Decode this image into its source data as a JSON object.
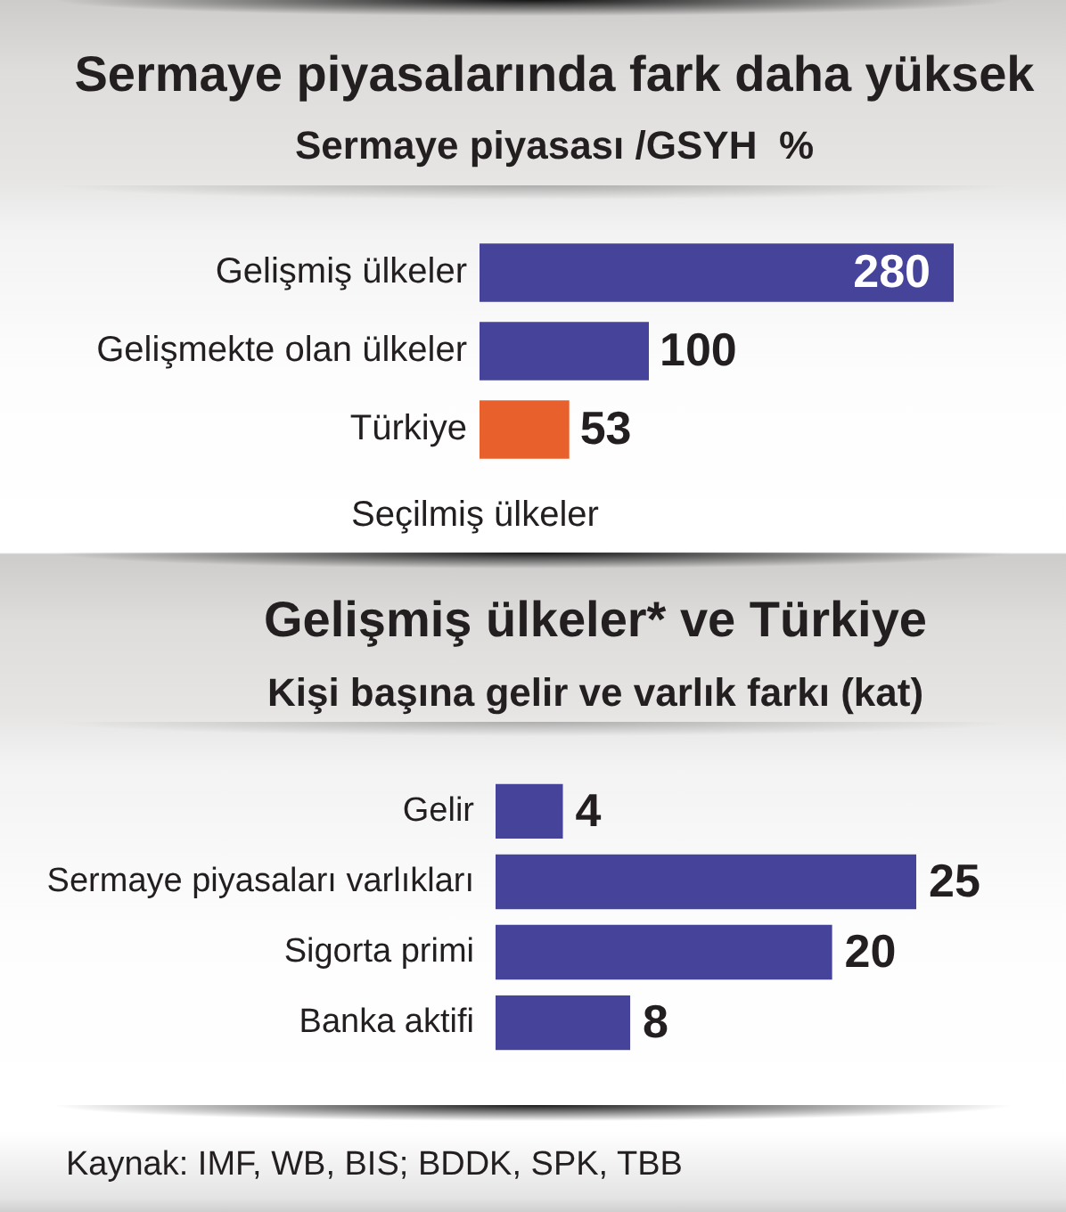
{
  "chart_data": [
    {
      "type": "bar",
      "orientation": "horizontal",
      "title": "Sermaye piyasalarında fark daha yüksek",
      "subtitle": "Sermaye piyasası /GSYH  %",
      "categories": [
        "Gelişmiş ülkeler",
        "Gelişmekte olan ülkeler",
        "Türkiye"
      ],
      "values": [
        280,
        100,
        53
      ],
      "colors": [
        "#45449a",
        "#45449a",
        "#e8612c"
      ],
      "data_labels": true,
      "annotations": [
        "Seçilmiş ülkeler"
      ]
    },
    {
      "type": "bar",
      "orientation": "horizontal",
      "title": "Gelişmiş ülkeler* ve Türkiye",
      "subtitle": "Kişi başına gelir ve varlık farkı (kat)",
      "categories": [
        "Gelir",
        "Sermaye piyasaları varlıkları",
        "Sigorta primi",
        "Banka aktifi"
      ],
      "values": [
        4,
        25,
        20,
        8
      ],
      "color": "#45449a",
      "data_labels": true,
      "annotations": [
        "Kaynak: IMF, WB, BIS; BDDK, SPK, TBB"
      ]
    }
  ]
}
